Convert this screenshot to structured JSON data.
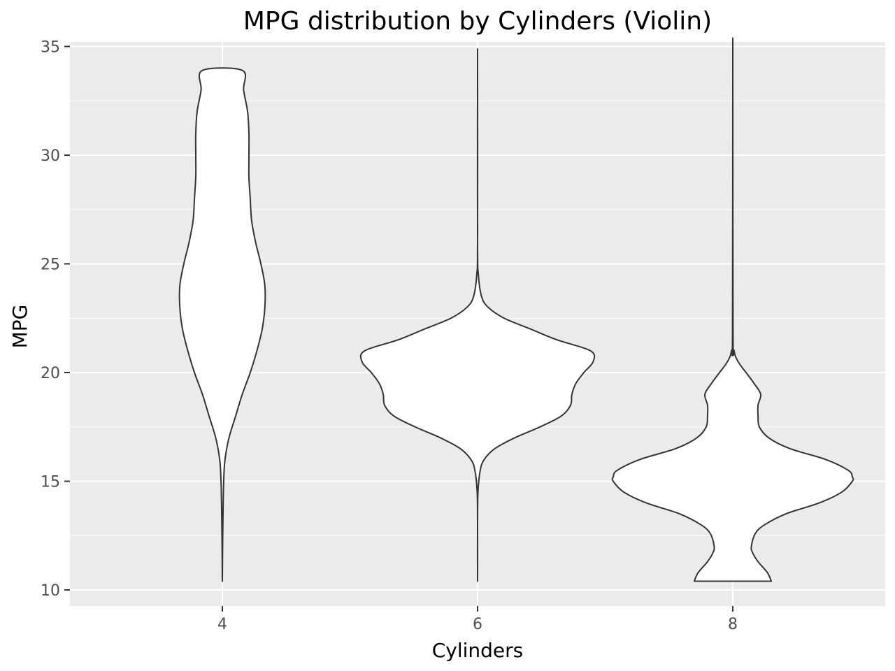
{
  "chart_data": {
    "type": "violin",
    "title": "MPG distribution by Cylinders (Violin)",
    "xlabel": "Cylinders",
    "ylabel": "MPG",
    "categories": [
      "4",
      "6",
      "8"
    ],
    "ylim": [
      9.3,
      35.0
    ],
    "yticks": [
      10,
      15,
      20,
      25,
      30,
      35
    ],
    "yticks_labels": [
      "10",
      "15",
      "20",
      "25",
      "30",
      "35"
    ],
    "grid": true,
    "background": "#EBEBEB",
    "gridline_color": "#FFFFFF",
    "violin_fill": "#FFFFFF",
    "violin_stroke": "#333333",
    "violins": [
      {
        "category": "4",
        "min": 10.4,
        "max": 33.9,
        "density_profile": [
          [
            10.4,
            0.0
          ],
          [
            12.0,
            0.002
          ],
          [
            13.5,
            0.005
          ],
          [
            15.0,
            0.01
          ],
          [
            16.0,
            0.02
          ],
          [
            17.0,
            0.05
          ],
          [
            18.0,
            0.1
          ],
          [
            19.0,
            0.15
          ],
          [
            20.0,
            0.21
          ],
          [
            21.0,
            0.26
          ],
          [
            22.0,
            0.3
          ],
          [
            23.0,
            0.32
          ],
          [
            24.0,
            0.32
          ],
          [
            25.0,
            0.29
          ],
          [
            26.0,
            0.25
          ],
          [
            27.0,
            0.22
          ],
          [
            28.0,
            0.21
          ],
          [
            29.0,
            0.2
          ],
          [
            30.0,
            0.2
          ],
          [
            31.0,
            0.2
          ],
          [
            32.0,
            0.19
          ],
          [
            33.0,
            0.16
          ],
          [
            33.9,
            0.15
          ]
        ]
      },
      {
        "category": "6",
        "min": 10.4,
        "max": 33.9,
        "density_profile": [
          [
            10.4,
            0.0
          ],
          [
            13.0,
            0.0
          ],
          [
            14.5,
            0.003
          ],
          [
            15.5,
            0.02
          ],
          [
            16.0,
            0.05
          ],
          [
            16.5,
            0.13
          ],
          [
            17.0,
            0.28
          ],
          [
            17.5,
            0.47
          ],
          [
            18.0,
            0.63
          ],
          [
            18.5,
            0.7
          ],
          [
            19.0,
            0.71
          ],
          [
            19.5,
            0.74
          ],
          [
            20.0,
            0.8
          ],
          [
            20.5,
            0.87
          ],
          [
            21.0,
            0.85
          ],
          [
            21.5,
            0.6
          ],
          [
            22.0,
            0.4
          ],
          [
            22.5,
            0.2
          ],
          [
            23.0,
            0.08
          ],
          [
            23.5,
            0.03
          ],
          [
            24.5,
            0.006
          ],
          [
            26.0,
            0.0
          ],
          [
            33.9,
            0.0
          ]
        ]
      },
      {
        "category": "8",
        "min": 10.4,
        "max": 33.9,
        "density_profile": [
          [
            10.4,
            0.29
          ],
          [
            10.8,
            0.26
          ],
          [
            11.3,
            0.19
          ],
          [
            11.7,
            0.15
          ],
          [
            12.0,
            0.14
          ],
          [
            12.6,
            0.17
          ],
          [
            13.0,
            0.24
          ],
          [
            13.5,
            0.4
          ],
          [
            14.0,
            0.65
          ],
          [
            14.5,
            0.82
          ],
          [
            15.0,
            0.9
          ],
          [
            15.2,
            0.9
          ],
          [
            15.5,
            0.87
          ],
          [
            16.0,
            0.7
          ],
          [
            16.5,
            0.43
          ],
          [
            17.0,
            0.27
          ],
          [
            17.5,
            0.2
          ],
          [
            18.0,
            0.19
          ],
          [
            18.5,
            0.19
          ],
          [
            19.0,
            0.21
          ],
          [
            19.5,
            0.16
          ],
          [
            20.0,
            0.1
          ],
          [
            20.5,
            0.04
          ],
          [
            21.0,
            0.01
          ],
          [
            22.0,
            0.002
          ],
          [
            33.9,
            0.0
          ]
        ]
      }
    ]
  }
}
